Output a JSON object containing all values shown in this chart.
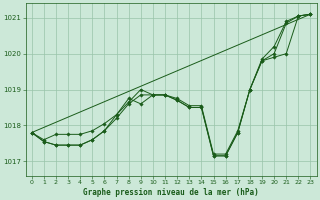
{
  "xlabel": "Graphe pression niveau de la mer (hPa)",
  "background_color": "#cce8d8",
  "grid_color": "#99c4aa",
  "line_color": "#1a5c1a",
  "ylim": [
    1016.6,
    1021.4
  ],
  "xlim": [
    -0.5,
    23.5
  ],
  "yticks": [
    1017,
    1018,
    1019,
    1020,
    1021
  ],
  "xticks": [
    0,
    1,
    2,
    3,
    4,
    5,
    6,
    7,
    8,
    9,
    10,
    11,
    12,
    13,
    14,
    15,
    16,
    17,
    18,
    19,
    20,
    21,
    22,
    23
  ],
  "line_trend_x": [
    0,
    23
  ],
  "line_trend_y": [
    1017.8,
    1021.1
  ],
  "line1_x": [
    0,
    1,
    2,
    3,
    4,
    5,
    6,
    7,
    8,
    9,
    10,
    11,
    12,
    13,
    14,
    15,
    16,
    17,
    18,
    19,
    20,
    21,
    22,
    23
  ],
  "line1_y": [
    1017.8,
    1017.6,
    1017.75,
    1017.75,
    1017.75,
    1017.85,
    1018.05,
    1018.3,
    1018.65,
    1019.0,
    1018.85,
    1018.85,
    1018.75,
    1018.55,
    1018.55,
    1017.2,
    1017.2,
    1017.85,
    1019.0,
    1019.85,
    1020.2,
    1020.9,
    1021.05,
    1021.1
  ],
  "line2_x": [
    0,
    1,
    2,
    3,
    4,
    5,
    6,
    7,
    8,
    9,
    10,
    11,
    12,
    13,
    14,
    15,
    16,
    17,
    18,
    19,
    20,
    21,
    22,
    23
  ],
  "line2_y": [
    1017.8,
    1017.55,
    1017.45,
    1017.45,
    1017.45,
    1017.6,
    1017.85,
    1018.3,
    1018.75,
    1018.6,
    1018.85,
    1018.85,
    1018.7,
    1018.5,
    1018.5,
    1017.15,
    1017.15,
    1017.8,
    1019.0,
    1019.8,
    1020.0,
    1020.85,
    1021.05,
    1021.1
  ],
  "line3_x": [
    0,
    1,
    2,
    3,
    4,
    5,
    6,
    7,
    8,
    9,
    10,
    11,
    12,
    13,
    14,
    15,
    16,
    17,
    18,
    19,
    20,
    21,
    22,
    23
  ],
  "line3_y": [
    1017.8,
    1017.55,
    1017.45,
    1017.45,
    1017.45,
    1017.6,
    1017.85,
    1018.2,
    1018.6,
    1018.85,
    1018.85,
    1018.85,
    1018.7,
    1018.5,
    1018.5,
    1017.15,
    1017.15,
    1017.8,
    1019.0,
    1019.8,
    1019.9,
    1020.0,
    1021.05,
    1021.1
  ]
}
